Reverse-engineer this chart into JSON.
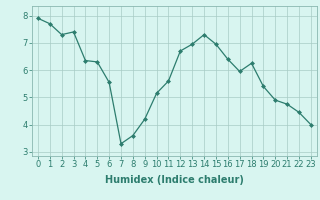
{
  "x": [
    0,
    1,
    2,
    3,
    4,
    5,
    6,
    7,
    8,
    9,
    10,
    11,
    12,
    13,
    14,
    15,
    16,
    17,
    18,
    19,
    20,
    21,
    22,
    23
  ],
  "y": [
    7.9,
    7.7,
    7.3,
    7.4,
    6.35,
    6.3,
    5.55,
    3.3,
    3.6,
    4.2,
    5.15,
    5.6,
    6.7,
    6.95,
    7.3,
    6.95,
    6.4,
    5.95,
    6.25,
    5.4,
    4.9,
    4.75,
    4.45,
    4.0
  ],
  "line_color": "#2d7d6e",
  "marker": "D",
  "marker_size": 2.0,
  "linewidth": 0.9,
  "bg_color": "#d8f5f0",
  "grid_color": "#a8ccc5",
  "xlabel": "Humidex (Indice chaleur)",
  "xlabel_fontsize": 7,
  "tick_fontsize": 6,
  "xlim": [
    -0.5,
    23.5
  ],
  "ylim": [
    2.85,
    8.35
  ],
  "yticks": [
    3,
    4,
    5,
    6,
    7,
    8
  ],
  "xticks": [
    0,
    1,
    2,
    3,
    4,
    5,
    6,
    7,
    8,
    9,
    10,
    11,
    12,
    13,
    14,
    15,
    16,
    17,
    18,
    19,
    20,
    21,
    22,
    23
  ]
}
